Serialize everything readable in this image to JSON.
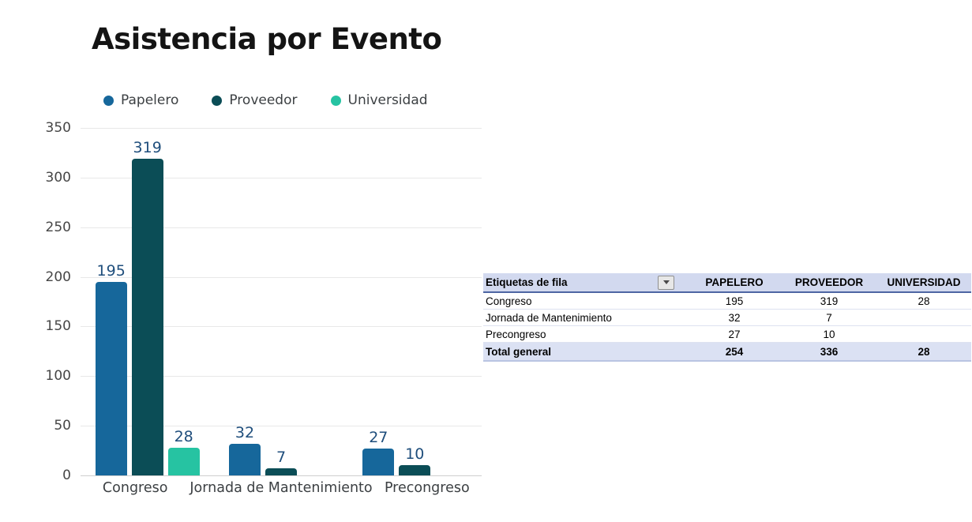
{
  "chart": {
    "title": "Asistencia por Evento",
    "legend": [
      {
        "label": "Papelero",
        "color": "#16679b"
      },
      {
        "label": "Proveedor",
        "color": "#0b4d56"
      },
      {
        "label": "Universidad",
        "color": "#26c3a2"
      }
    ],
    "y_ticks": [
      350,
      300,
      250,
      200,
      150,
      100,
      50,
      0
    ],
    "categories": [
      "Congreso",
      "Jornada de Mantenimiento",
      "Precongreso"
    ],
    "series": [
      {
        "name": "Papelero",
        "color": "#16679b",
        "values": [
          195,
          32,
          27
        ]
      },
      {
        "name": "Proveedor",
        "color": "#0b4d56",
        "values": [
          319,
          7,
          10
        ]
      },
      {
        "name": "Universidad",
        "color": "#26c3a2",
        "values": [
          28,
          null,
          null
        ]
      }
    ],
    "label_color": "#1f4e7c"
  },
  "chart_data": {
    "type": "bar",
    "title": "Asistencia por Evento",
    "categories": [
      "Congreso",
      "Jornada de Mantenimiento",
      "Precongreso"
    ],
    "series": [
      {
        "name": "Papelero",
        "values": [
          195,
          32,
          27
        ]
      },
      {
        "name": "Proveedor",
        "values": [
          319,
          7,
          10
        ]
      },
      {
        "name": "Universidad",
        "values": [
          28,
          null,
          null
        ]
      }
    ],
    "xlabel": "",
    "ylabel": "",
    "ylim": [
      0,
      350
    ],
    "y_ticks": [
      0,
      50,
      100,
      150,
      200,
      250,
      300,
      350
    ],
    "grid": "horizontal",
    "legend_position": "top",
    "data_labels": true
  },
  "table": {
    "header": {
      "row_label": "Etiquetas de fila",
      "filter_icon": "dropdown-arrow",
      "columns": [
        "PAPELERO",
        "PROVEEDOR",
        "UNIVERSIDAD"
      ]
    },
    "rows": [
      {
        "label": "Congreso",
        "values": [
          "195",
          "319",
          "28"
        ]
      },
      {
        "label": "Jornada de Mantenimiento",
        "values": [
          "32",
          "7",
          ""
        ]
      },
      {
        "label": "Precongreso",
        "values": [
          "27",
          "10",
          ""
        ]
      }
    ],
    "total": {
      "label": "Total general",
      "values": [
        "254",
        "336",
        "28"
      ]
    },
    "colors": {
      "header_fill": "#d2d9ef",
      "total_fill": "#dbe1f3",
      "header_border": "#4e66a3"
    }
  }
}
